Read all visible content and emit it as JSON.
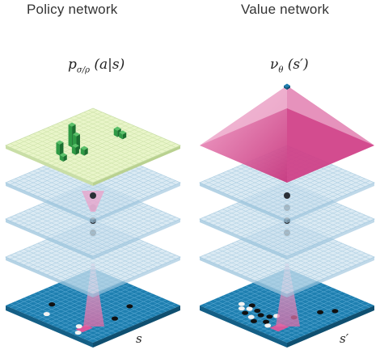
{
  "panels": {
    "policy": {
      "title": "Policy network",
      "formula_main": "p",
      "formula_sub": "σ/ρ",
      "formula_rest": " (a|s)",
      "state_label": "s"
    },
    "value": {
      "title": "Value network",
      "formula_main": "ν",
      "formula_sub": "θ",
      "formula_rest": " (s′)",
      "state_label": "s′"
    }
  },
  "colors": {
    "board_blue": "#1e7fb0",
    "board_grid": "#5aa8d2",
    "layer_fill": "#cfe3f0",
    "layer_stroke": "#9cc4dc",
    "policy_top": "#e9f5c9",
    "policy_bars": "#1f8a3a",
    "value_pyramid": "#e15a9e",
    "connector": "#e9a5cc",
    "dots": "#2a2f36"
  }
}
